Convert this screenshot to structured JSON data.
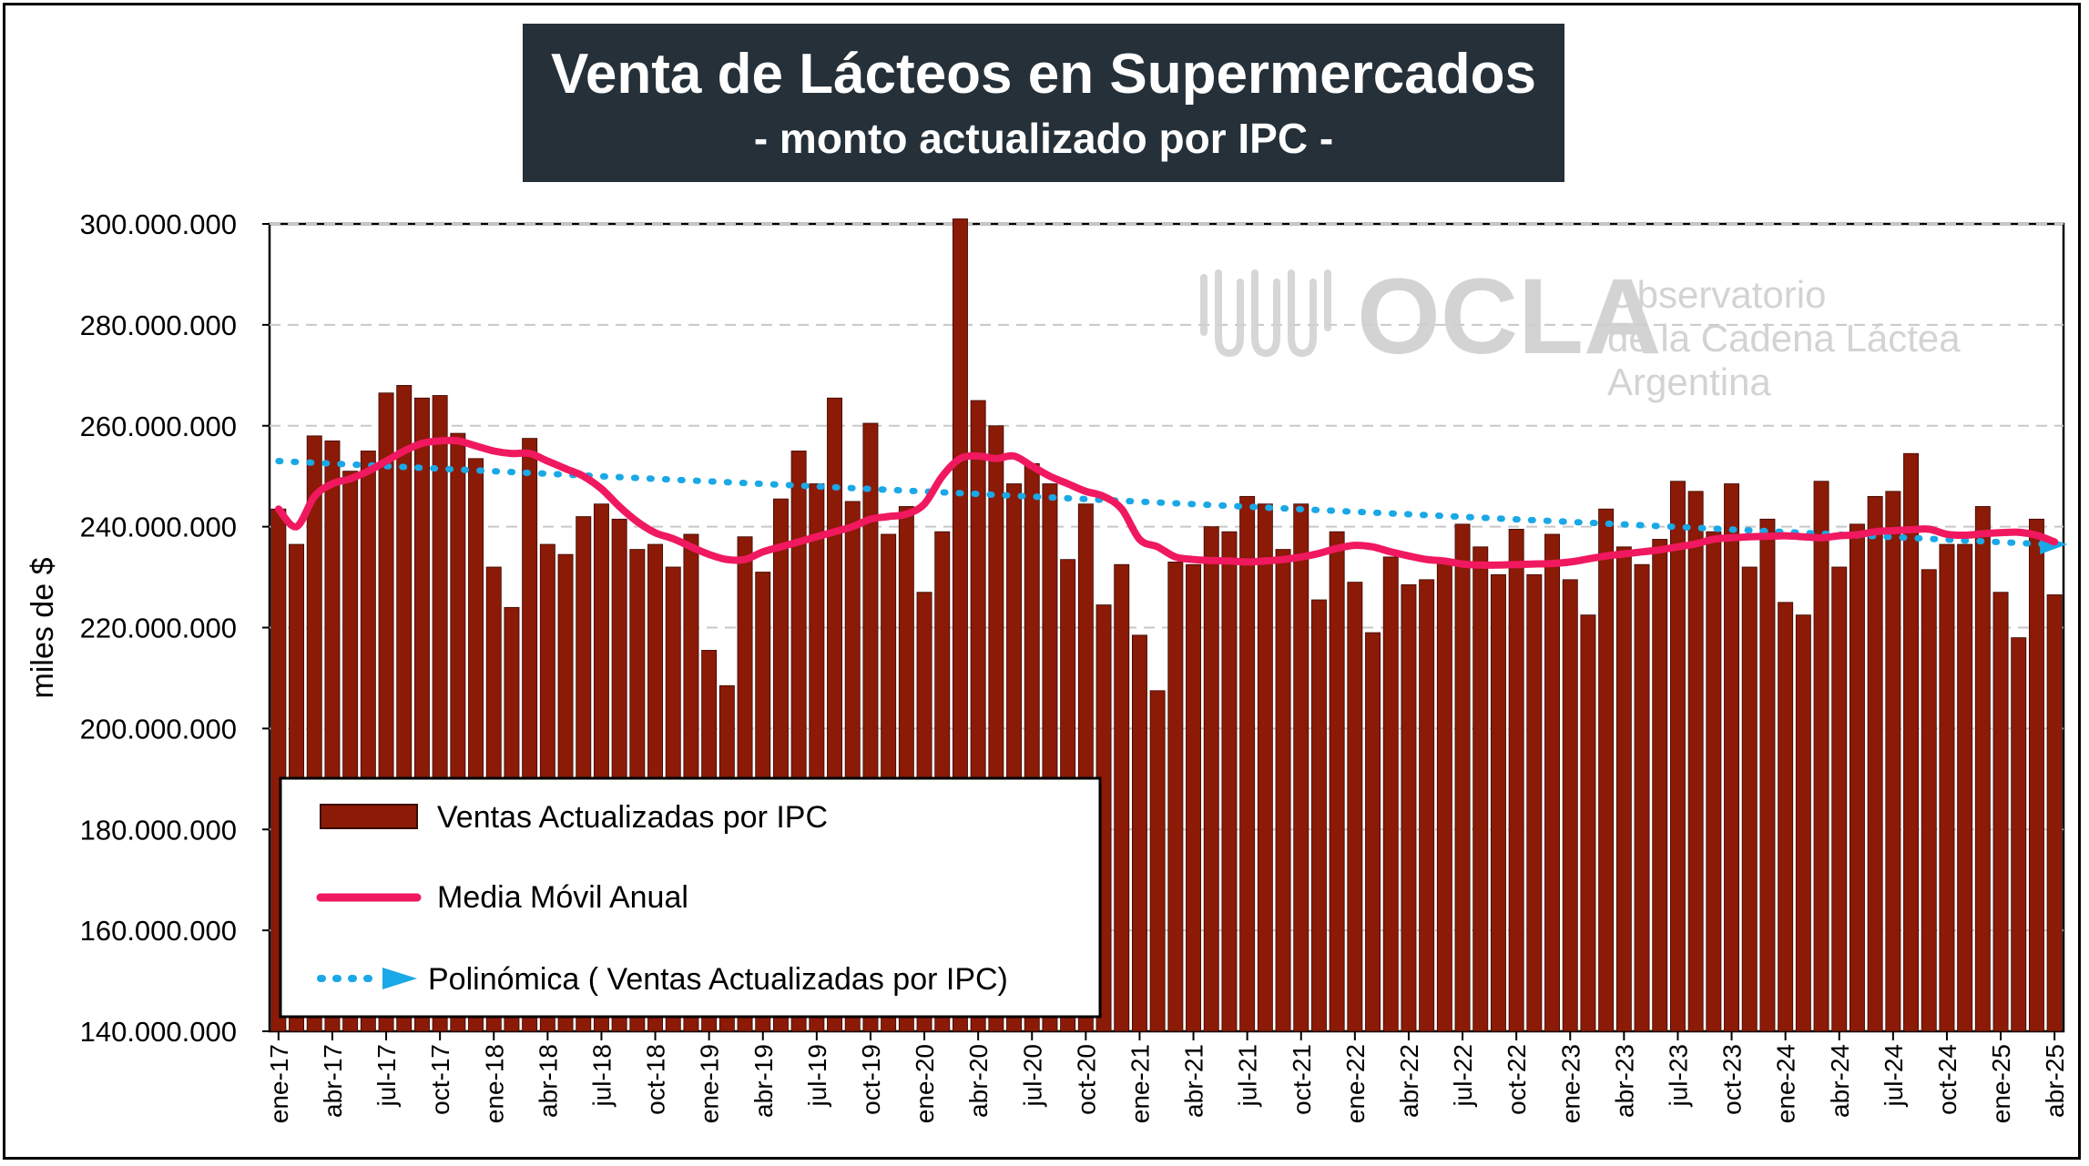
{
  "title": "Venta de Lácteos en Supermercados",
  "subtitle": "- monto actualizado por IPC -",
  "watermark": {
    "logo": "OCLA",
    "lines": [
      "Observatorio",
      "de la Cadena Láctea",
      "Argentina"
    ]
  },
  "colors": {
    "bar": "#8b1a07",
    "bar_edge": "#3a0a02",
    "moving_average": "#f0185f",
    "trend": "#1aa8e6",
    "title_bg": "#253039",
    "grid": "#c8c8c8"
  },
  "chart_data": {
    "type": "bar",
    "ylabel": "miles de $",
    "ylim": [
      140000000,
      300000000
    ],
    "yticks": [
      "140.000.000",
      "160.000.000",
      "180.000.000",
      "200.000.000",
      "220.000.000",
      "240.000.000",
      "260.000.000",
      "280.000.000",
      "300.000.000"
    ],
    "ytick_values": [
      140000000,
      160000000,
      180000000,
      200000000,
      220000000,
      240000000,
      260000000,
      280000000,
      300000000
    ],
    "grid": "horizontal dashed",
    "legend_position": "bottom-left",
    "xtick_labels": [
      "ene-17",
      "abr-17",
      "jul-17",
      "oct-17",
      "ene-18",
      "abr-18",
      "jul-18",
      "oct-18",
      "ene-19",
      "abr-19",
      "jul-19",
      "oct-19",
      "ene-20",
      "abr-20",
      "jul-20",
      "oct-20",
      "ene-21",
      "abr-21",
      "jul-21",
      "oct-21",
      "ene-22",
      "abr-22",
      "jul-22",
      "oct-22",
      "ene-23",
      "abr-23",
      "jul-23",
      "oct-23",
      "ene-24",
      "abr-24",
      "jul-24",
      "oct-24",
      "ene-25",
      "abr-25"
    ],
    "series": [
      {
        "name": "Ventas Actualizadas por IPC",
        "kind": "bar",
        "values": [
          243.5,
          236.5,
          258,
          257,
          251,
          255,
          266.5,
          268,
          265.5,
          266,
          258.5,
          253.5,
          232,
          224,
          257.5,
          236.5,
          234.5,
          242,
          244.5,
          241.5,
          235.5,
          236.5,
          232,
          238.5,
          215.5,
          208.5,
          238,
          231,
          245.5,
          255,
          248.5,
          265.5,
          245,
          260.5,
          238.5,
          244,
          227,
          239,
          301,
          265,
          260,
          248.5,
          252.5,
          248.5,
          233.5,
          244.5,
          224.5,
          232.5,
          218.5,
          207.5,
          233,
          232.5,
          240,
          239,
          246,
          244.5,
          235.5,
          244.5,
          225.5,
          239,
          229,
          219,
          234,
          228.5,
          229.5,
          233,
          240.5,
          236,
          230.5,
          239.5,
          230.5,
          238.5,
          229.5,
          222.5,
          243.5,
          236,
          232.5,
          237.5,
          249,
          247,
          239,
          248.5,
          232,
          241.5,
          225,
          222.5,
          249,
          232,
          240.5,
          246,
          247,
          254.5,
          231.5,
          236.5,
          236.5,
          244,
          227,
          218,
          241.5,
          226.5
        ]
      },
      {
        "name": "Media Móvil Anual",
        "kind": "line",
        "values": [
          243.5,
          240,
          246,
          248.5,
          249.5,
          251,
          253,
          255,
          256.5,
          257,
          257,
          256,
          255,
          254.5,
          254.5,
          253,
          251.5,
          250,
          247.5,
          244,
          241,
          238.8,
          237.6,
          236,
          234.5,
          233.5,
          233.5,
          235,
          236,
          237,
          238,
          239,
          240,
          241.5,
          242,
          242.5,
          244.5,
          250,
          253.5,
          254,
          253.5,
          254,
          252,
          250,
          248.5,
          247,
          246,
          243.5,
          237.5,
          236,
          234,
          233.5,
          233.3,
          233.2,
          233,
          233.2,
          233.5,
          234,
          234.7,
          235.7,
          236.3,
          236,
          235,
          234.2,
          233.5,
          233.2,
          232.6,
          232.4,
          232.4,
          232.5,
          232.6,
          232.7,
          233,
          233.6,
          234.2,
          234.6,
          235,
          235.4,
          236,
          236.6,
          237.5,
          237.8,
          238,
          238.1,
          238.2,
          238,
          237.8,
          238.2,
          238.4,
          239,
          239.2,
          239.4,
          239.5,
          238.5,
          238.3,
          238.6,
          238.8,
          238.9,
          238.3,
          237
        ]
      },
      {
        "name": "Polinómica ( Ventas Actualizadas por IPC)",
        "kind": "trend",
        "start": 253,
        "end": 236.5
      }
    ]
  }
}
